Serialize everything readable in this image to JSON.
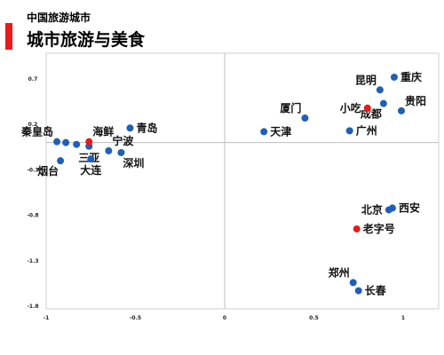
{
  "header": {
    "subtitle": "中国旅游城市",
    "title": "城市旅游与美食",
    "accent_color": "#e81a1a"
  },
  "chart_data": {
    "type": "scatter",
    "xlim": [
      -1,
      1.2
    ],
    "ylim": [
      -1.8,
      0.9
    ],
    "xticks": [
      "-1",
      "-0.5",
      "0",
      "0.5",
      "1"
    ],
    "xtick_values": [
      -1,
      -0.5,
      0,
      0.5,
      1
    ],
    "yticks": [
      "0.7",
      "0.2",
      "-0.3",
      "-0.8",
      "-1.3",
      "-1.8"
    ],
    "ytick_values": [
      0.7,
      0.2,
      -0.3,
      -0.8,
      -1.3,
      -1.8
    ],
    "grid": false,
    "point_colors": {
      "city": "#1f5fb4",
      "food": "#e81a1a"
    },
    "points": [
      {
        "label": "重庆",
        "x": 0.95,
        "y": 0.72,
        "kind": "city",
        "label_pos": "right"
      },
      {
        "label": "昆明",
        "x": 0.87,
        "y": 0.58,
        "kind": "city",
        "label_pos": "upper-left"
      },
      {
        "label": "贵阳",
        "x": 0.99,
        "y": 0.35,
        "kind": "city",
        "label_pos": "upper-right"
      },
      {
        "label": "成都",
        "x": 0.89,
        "y": 0.43,
        "kind": "city",
        "label_pos": "lower-left"
      },
      {
        "label": "小吃",
        "x": 0.8,
        "y": 0.38,
        "kind": "food",
        "label_pos": "left"
      },
      {
        "label": "厦门",
        "x": 0.45,
        "y": 0.27,
        "kind": "city",
        "label_pos": "upper-left"
      },
      {
        "label": "广州",
        "x": 0.7,
        "y": 0.13,
        "kind": "city",
        "label_pos": "right"
      },
      {
        "label": "天津",
        "x": 0.22,
        "y": 0.12,
        "kind": "city",
        "label_pos": "right"
      },
      {
        "label": "秦皇岛",
        "x": -0.94,
        "y": 0.01,
        "kind": "city",
        "label_pos": "upper-left"
      },
      {
        "label": "",
        "x": -0.89,
        "y": 0.0,
        "kind": "city",
        "label_pos": "none"
      },
      {
        "label": "",
        "x": -0.83,
        "y": -0.02,
        "kind": "city",
        "label_pos": "none"
      },
      {
        "label": "三亚",
        "x": -0.76,
        "y": -0.04,
        "kind": "city",
        "label_pos": "below"
      },
      {
        "label": "海鲜",
        "x": -0.76,
        "y": 0.01,
        "kind": "food",
        "label_pos": "upper-right"
      },
      {
        "label": "烟台",
        "x": -0.92,
        "y": -0.2,
        "kind": "city",
        "label_pos": "lower-left"
      },
      {
        "label": "大连",
        "x": -0.75,
        "y": -0.18,
        "kind": "city",
        "label_pos": "below"
      },
      {
        "label": "青岛",
        "x": -0.53,
        "y": 0.16,
        "kind": "city",
        "label_pos": "right"
      },
      {
        "label": "宁波",
        "x": -0.65,
        "y": -0.09,
        "kind": "city",
        "label_pos": "upper-right"
      },
      {
        "label": "深圳",
        "x": -0.58,
        "y": -0.11,
        "kind": "city",
        "label_pos": "lower-right"
      },
      {
        "label": "北京",
        "x": 0.92,
        "y": -0.74,
        "kind": "city",
        "label_pos": "left"
      },
      {
        "label": "西安",
        "x": 0.94,
        "y": -0.72,
        "kind": "city",
        "label_pos": "right"
      },
      {
        "label": "老字号",
        "x": 0.74,
        "y": -0.95,
        "kind": "food",
        "label_pos": "right"
      },
      {
        "label": "郑州",
        "x": 0.72,
        "y": -1.54,
        "kind": "city",
        "label_pos": "upper-left"
      },
      {
        "label": "长春",
        "x": 0.75,
        "y": -1.63,
        "kind": "city",
        "label_pos": "right"
      }
    ]
  }
}
